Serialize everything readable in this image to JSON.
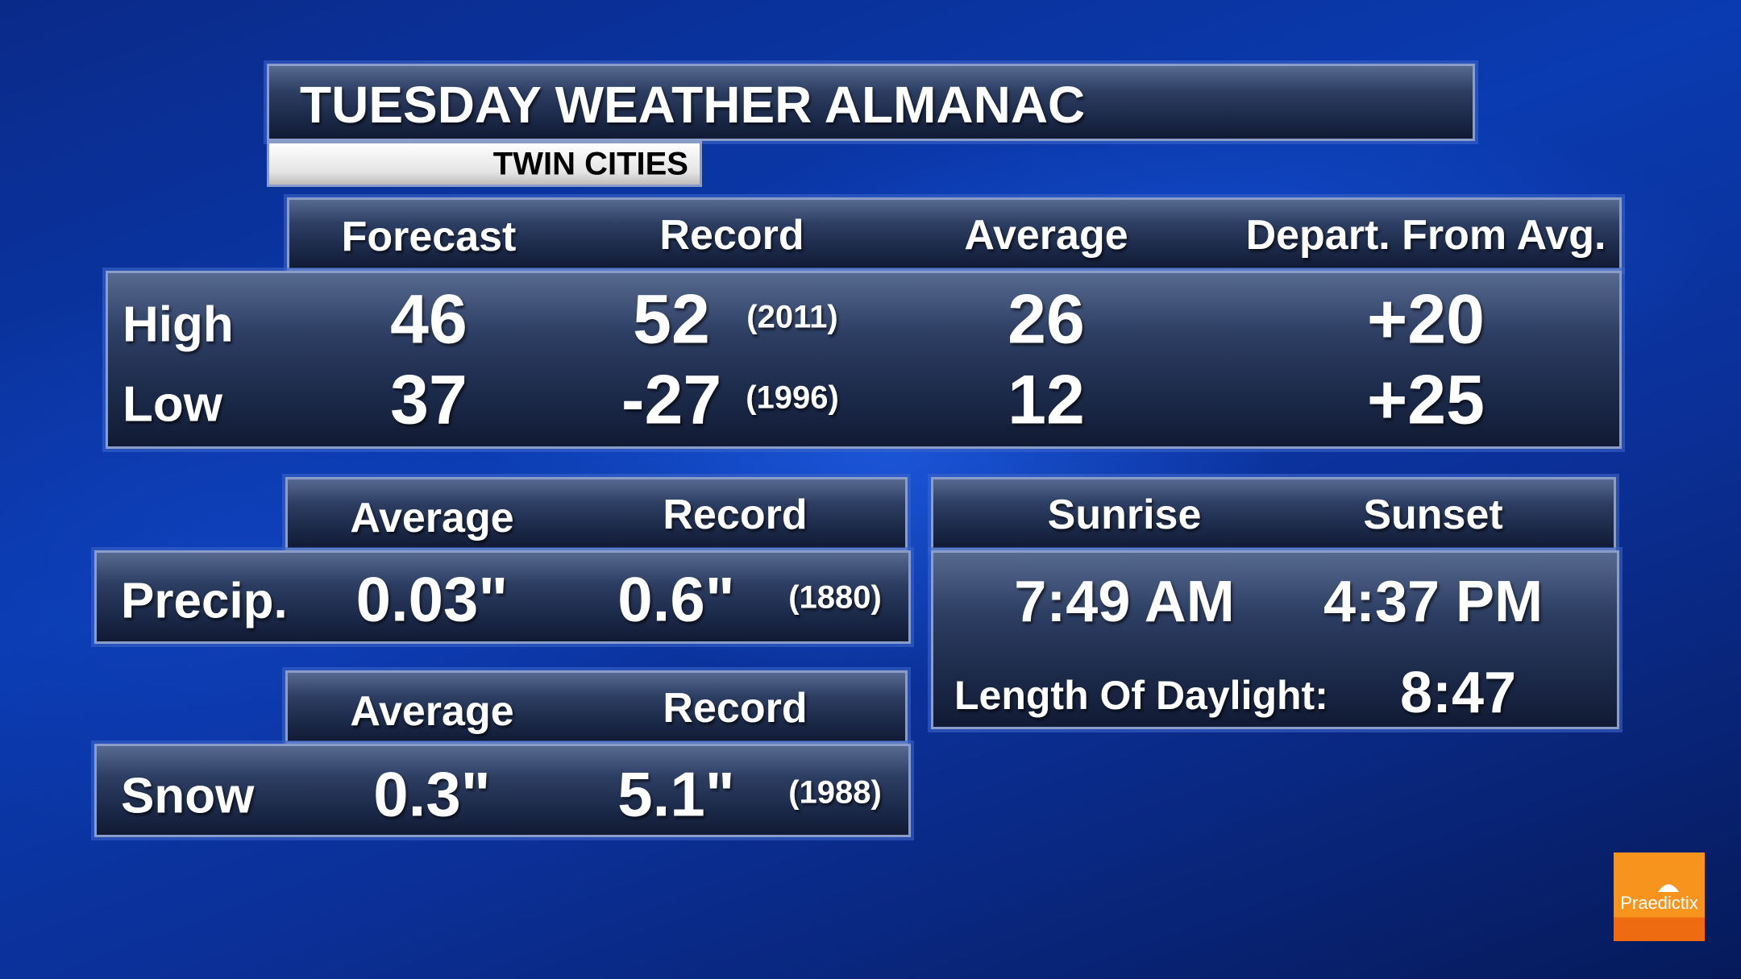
{
  "header": {
    "title": "TUESDAY WEATHER ALMANAC",
    "location": "TWIN CITIES"
  },
  "temps": {
    "columns": [
      "Forecast",
      "Record",
      "Average",
      "Depart. From Avg."
    ],
    "rows": [
      {
        "label": "High",
        "forecast": "46",
        "record": "52",
        "record_year": "(2011)",
        "average": "26",
        "departure": "+20"
      },
      {
        "label": "Low",
        "forecast": "37",
        "record": "-27",
        "record_year": "(1996)",
        "average": "12",
        "departure": "+25"
      }
    ]
  },
  "precip": {
    "columns": [
      "Average",
      "Record"
    ],
    "label": "Precip.",
    "average": "0.03\"",
    "record": "0.6\"",
    "record_year": "(1880)"
  },
  "snow": {
    "columns": [
      "Average",
      "Record"
    ],
    "label": "Snow",
    "average": "0.3\"",
    "record": "5.1\"",
    "record_year": "(1988)"
  },
  "sun": {
    "columns": [
      "Sunrise",
      "Sunset"
    ],
    "sunrise": "7:49 AM",
    "sunset": "4:37 PM",
    "daylight_label": "Length Of Daylight:",
    "daylight": "8:47"
  },
  "logo": {
    "text": "Praedictix",
    "colors": {
      "top": "#f7941d",
      "bottom": "#ef6b12"
    }
  }
}
